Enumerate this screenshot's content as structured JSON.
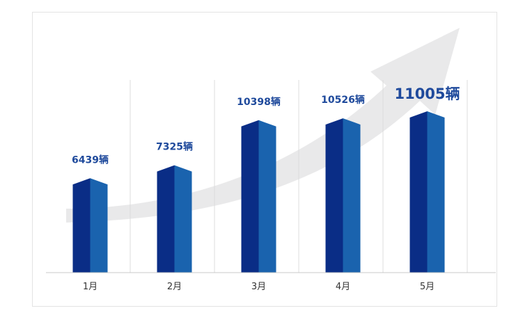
{
  "chart_data": {
    "type": "bar",
    "categories": [
      "1月",
      "2月",
      "3月",
      "4月",
      "5月"
    ],
    "values": [
      6439,
      7325,
      10398,
      10526,
      11005
    ],
    "value_labels": [
      "6439辆",
      "7325辆",
      "10398辆",
      "10526辆",
      "11005辆"
    ],
    "unit": "辆",
    "title": "",
    "xlabel": "",
    "ylabel": "",
    "grid": "vertical separators between categories",
    "legend": "none",
    "decoration": "grey upward trend arrow behind bars"
  },
  "colors": {
    "bar_front": "#0a2d86",
    "bar_side": "#1a63ae",
    "label": "#1f4a9c",
    "arrow": "#e9e9ea",
    "grid": "#dcdcdc",
    "axis": "#c8c8c8"
  }
}
